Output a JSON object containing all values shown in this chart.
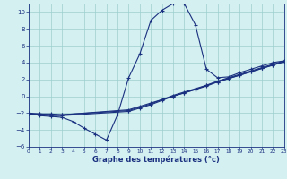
{
  "xlabel": "Graphe des températures (°c)",
  "bg_color": "#d4f0f0",
  "line_color": "#1a3080",
  "grid_color": "#9ecece",
  "x_min": 0,
  "x_max": 23,
  "y_min": -6,
  "y_max": 11,
  "yticks": [
    -6,
    -4,
    -2,
    0,
    2,
    4,
    6,
    8,
    10
  ],
  "line1_x": [
    0,
    1,
    2,
    3,
    4,
    5,
    6,
    7,
    8,
    9,
    10,
    11,
    12,
    13,
    14,
    15,
    16,
    17,
    18,
    19,
    20,
    21,
    22,
    23
  ],
  "line1_y": [
    -2.0,
    -2.3,
    -2.4,
    -2.5,
    -3.0,
    -3.8,
    -4.5,
    -5.2,
    -2.2,
    2.2,
    5.0,
    9.0,
    10.2,
    11.0,
    11.0,
    8.5,
    3.2,
    2.2,
    2.3,
    2.8,
    3.2,
    3.6,
    4.0,
    4.2
  ],
  "line2_x": [
    0,
    1,
    2,
    3,
    9,
    10,
    11,
    12,
    13,
    14,
    15,
    16,
    17,
    18,
    19,
    20,
    21,
    22,
    23
  ],
  "line2_y": [
    -2.0,
    -2.1,
    -2.2,
    -2.2,
    -1.6,
    -1.2,
    -0.8,
    -0.4,
    0.0,
    0.4,
    0.8,
    1.3,
    1.7,
    2.1,
    2.5,
    2.9,
    3.3,
    3.7,
    4.1
  ],
  "line3_x": [
    0,
    1,
    2,
    3,
    9,
    10,
    11,
    12,
    13,
    14,
    15,
    16,
    17,
    18,
    19,
    20,
    21,
    22,
    23
  ],
  "line3_y": [
    -2.1,
    -2.2,
    -2.3,
    -2.3,
    -1.8,
    -1.4,
    -1.0,
    -0.5,
    0.0,
    0.4,
    0.8,
    1.2,
    1.7,
    2.1,
    2.5,
    2.9,
    3.3,
    3.7,
    4.1
  ],
  "line4_x": [
    0,
    1,
    2,
    3,
    9,
    10,
    11,
    12,
    13,
    14,
    15,
    16,
    17,
    18,
    19,
    20,
    21,
    22,
    23
  ],
  "line4_y": [
    -2.1,
    -2.1,
    -2.1,
    -2.2,
    -1.7,
    -1.3,
    -0.9,
    -0.4,
    0.1,
    0.5,
    0.9,
    1.3,
    1.8,
    2.2,
    2.6,
    3.0,
    3.4,
    3.8,
    4.2
  ]
}
